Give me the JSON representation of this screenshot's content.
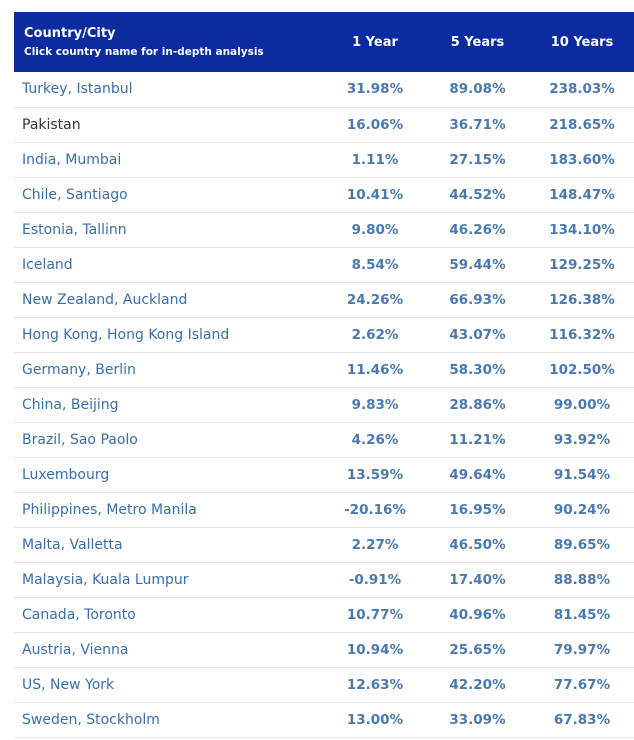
{
  "table": {
    "header": {
      "title": "Country/City",
      "subtitle": "Click country name for in-depth analysis",
      "columns": [
        "1 Year",
        "5 Years",
        "10 Years"
      ]
    },
    "rows": [
      {
        "name": "Turkey, Istanbul",
        "link": true,
        "values": [
          "31.98%",
          "89.08%",
          "238.03%"
        ]
      },
      {
        "name": "Pakistan",
        "link": false,
        "values": [
          "16.06%",
          "36.71%",
          "218.65%"
        ]
      },
      {
        "name": "India, Mumbai",
        "link": true,
        "values": [
          "1.11%",
          "27.15%",
          "183.60%"
        ]
      },
      {
        "name": "Chile, Santiago",
        "link": true,
        "values": [
          "10.41%",
          "44.52%",
          "148.47%"
        ]
      },
      {
        "name": "Estonia, Tallinn",
        "link": true,
        "values": [
          "9.80%",
          "46.26%",
          "134.10%"
        ]
      },
      {
        "name": "Iceland",
        "link": true,
        "values": [
          "8.54%",
          "59.44%",
          "129.25%"
        ]
      },
      {
        "name": "New Zealand, Auckland",
        "link": true,
        "values": [
          "24.26%",
          "66.93%",
          "126.38%"
        ]
      },
      {
        "name": "Hong Kong, Hong Kong Island",
        "link": true,
        "values": [
          "2.62%",
          "43.07%",
          "116.32%"
        ]
      },
      {
        "name": "Germany, Berlin",
        "link": true,
        "values": [
          "11.46%",
          "58.30%",
          "102.50%"
        ]
      },
      {
        "name": "China, Beijing",
        "link": true,
        "values": [
          "9.83%",
          "28.86%",
          "99.00%"
        ]
      },
      {
        "name": "Brazil, Sao Paolo",
        "link": true,
        "values": [
          "4.26%",
          "11.21%",
          "93.92%"
        ]
      },
      {
        "name": "Luxembourg",
        "link": true,
        "values": [
          "13.59%",
          "49.64%",
          "91.54%"
        ]
      },
      {
        "name": "Philippines, Metro Manila",
        "link": true,
        "values": [
          "-20.16%",
          "16.95%",
          "90.24%"
        ]
      },
      {
        "name": "Malta, Valletta",
        "link": true,
        "values": [
          "2.27%",
          "46.50%",
          "89.65%"
        ]
      },
      {
        "name": "Malaysia, Kuala Lumpur",
        "link": true,
        "values": [
          "-0.91%",
          "17.40%",
          "88.88%"
        ]
      },
      {
        "name": "Canada, Toronto",
        "link": true,
        "values": [
          "10.77%",
          "40.96%",
          "81.45%"
        ]
      },
      {
        "name": "Austria, Vienna",
        "link": true,
        "values": [
          "10.94%",
          "25.65%",
          "79.97%"
        ]
      },
      {
        "name": "US, New York",
        "link": true,
        "values": [
          "12.63%",
          "42.20%",
          "77.67%"
        ]
      },
      {
        "name": "Sweden, Stockholm",
        "link": true,
        "values": [
          "13.00%",
          "33.09%",
          "67.83%"
        ]
      }
    ]
  }
}
